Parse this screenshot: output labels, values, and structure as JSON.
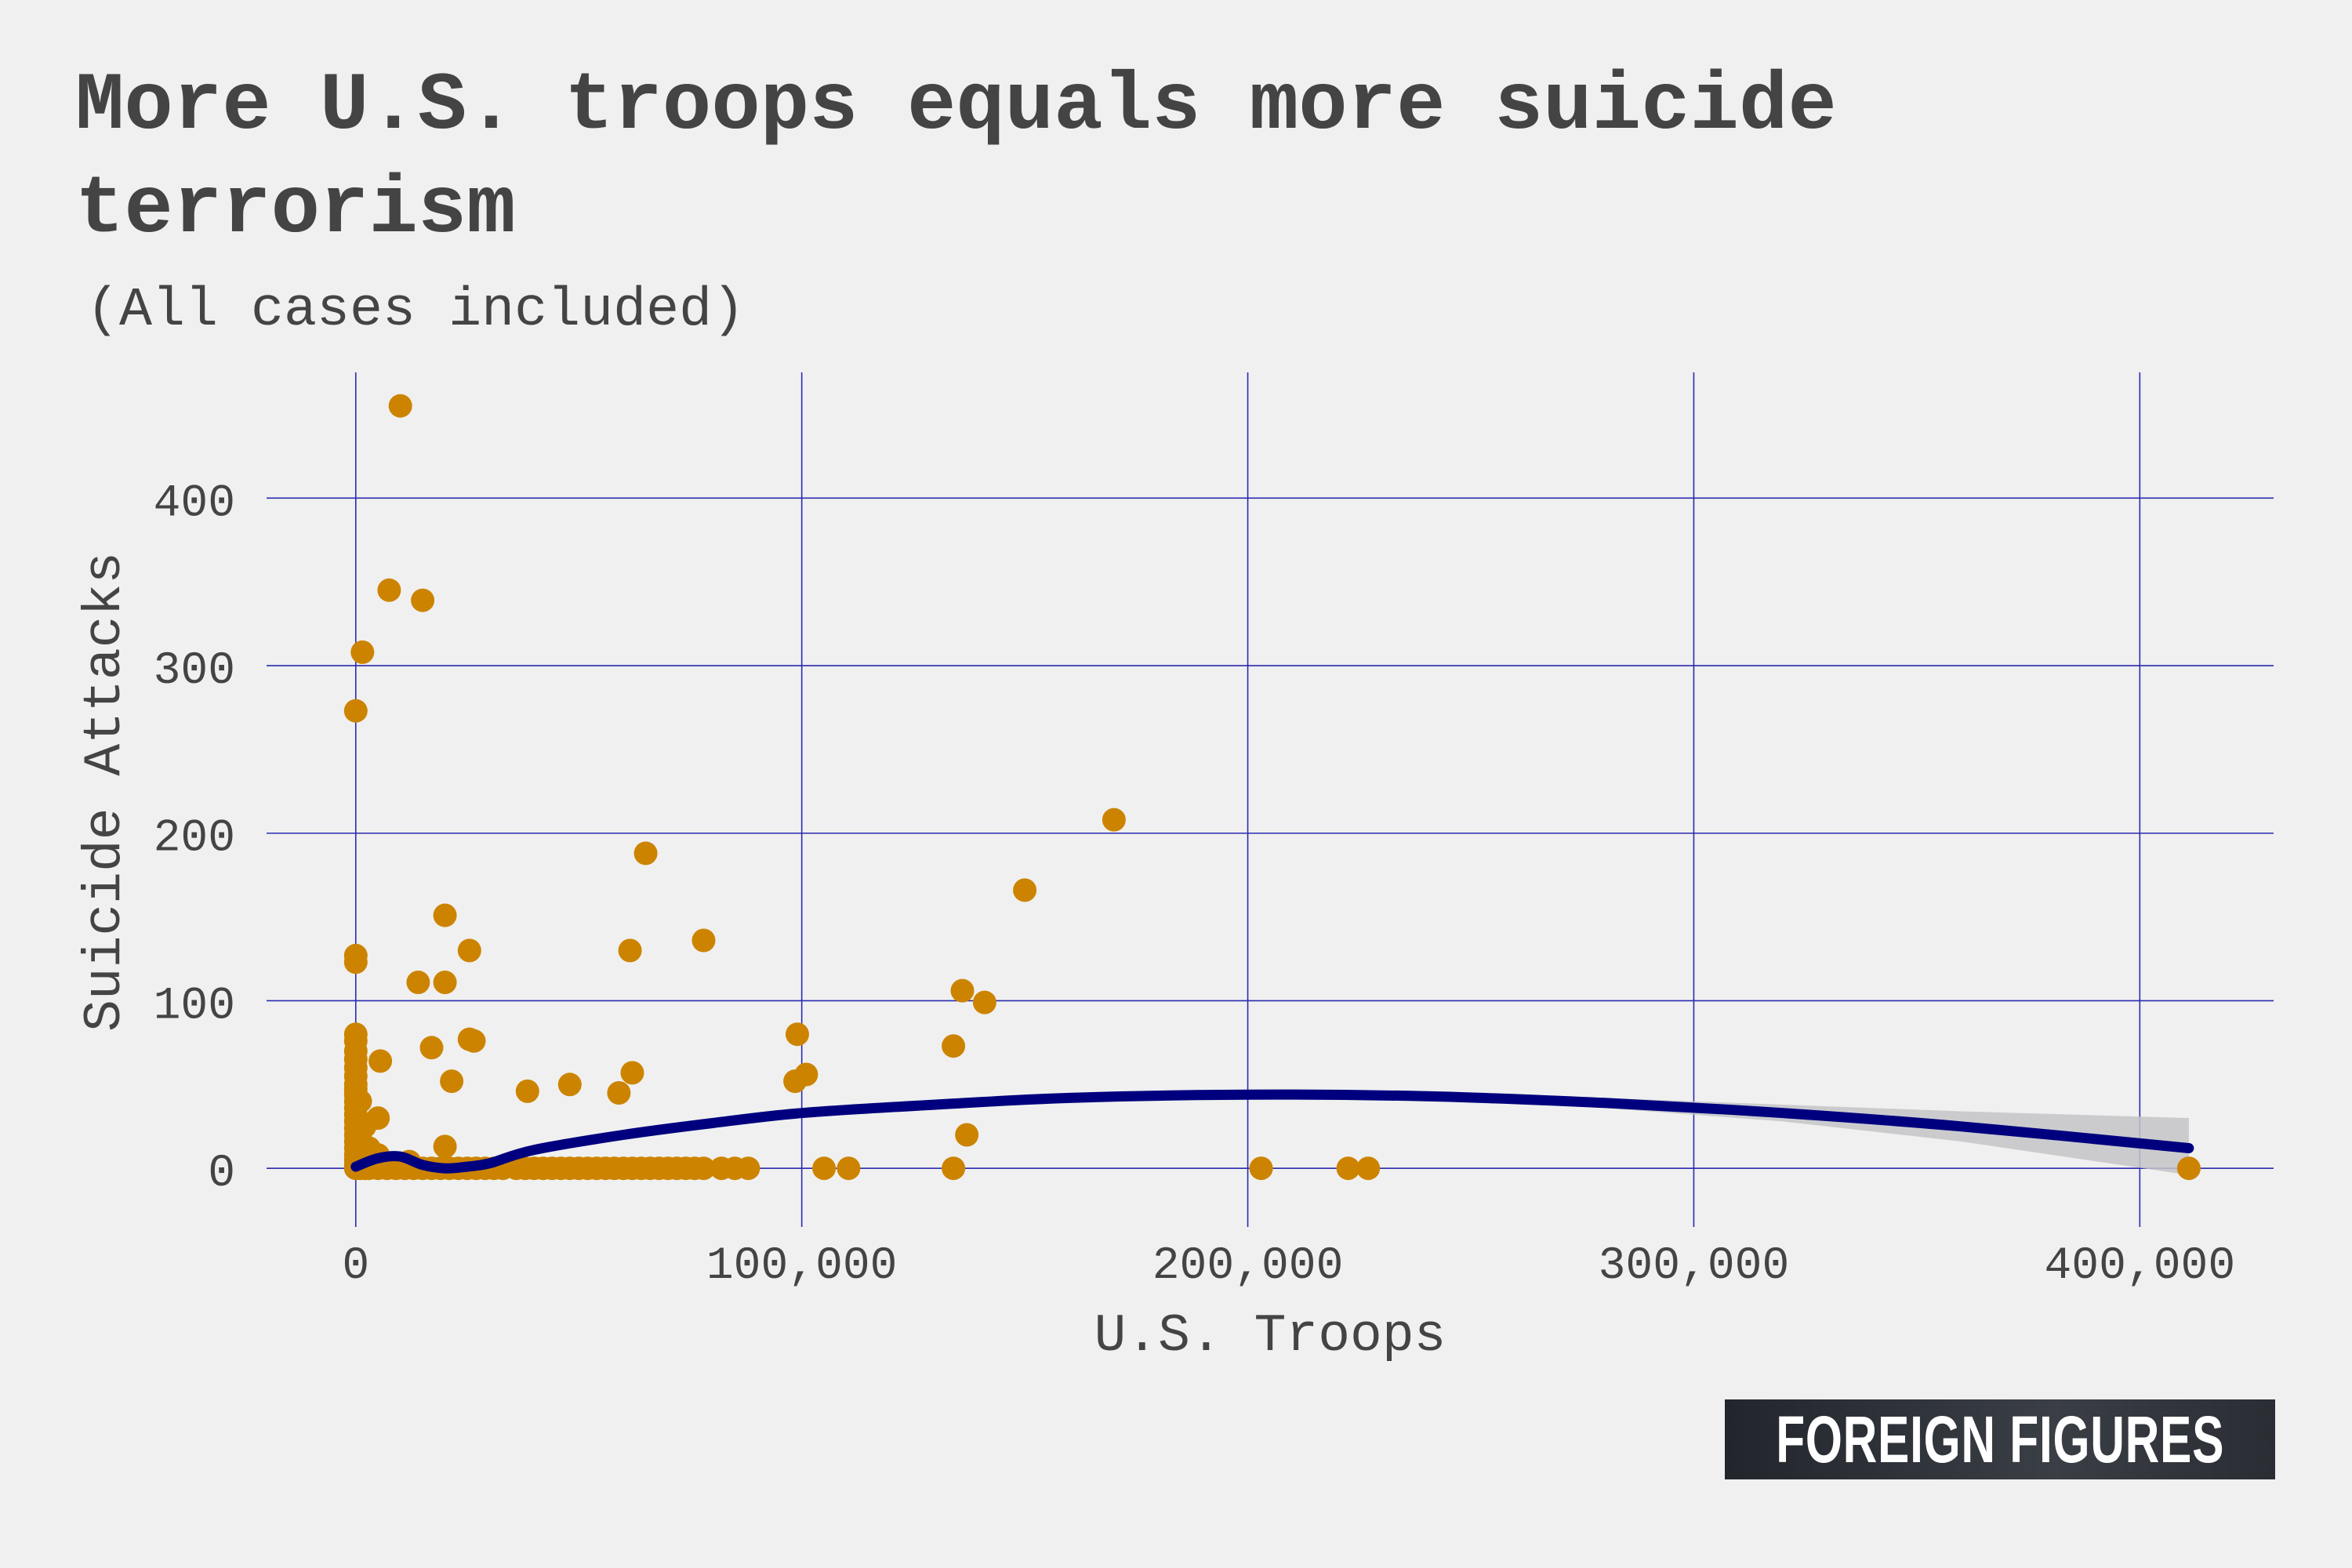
{
  "chart_data": {
    "type": "scatter",
    "title": "More U.S. troops equals more suicide terrorism",
    "subtitle": "(All cases included)",
    "xlabel": "U.S. Troops",
    "ylabel": "Suicide Attacks",
    "xlim": [
      -20000,
      430000
    ],
    "ylim": [
      -35,
      475
    ],
    "x_ticks": [
      0,
      100000,
      200000,
      300000,
      400000
    ],
    "x_tick_labels": [
      "0",
      "100,000",
      "200,000",
      "300,000",
      "400,000"
    ],
    "y_ticks": [
      0,
      100,
      200,
      300,
      400
    ],
    "y_tick_labels": [
      "0",
      "100",
      "200",
      "300",
      "400"
    ],
    "grid": true,
    "colors": {
      "points": "#cc8400",
      "fit_line": "#00007f",
      "band": "#c4c4c8",
      "grid": "#2a2ab0",
      "background": "#f0f0f0",
      "text": "#444444"
    },
    "series": [
      {
        "x": [
          10000,
          7500,
          15000,
          1500,
          0,
          170000,
          65000,
          150000,
          20000,
          78000,
          0,
          0,
          61500,
          25500,
          20000,
          14000,
          136000,
          141000,
          99000,
          0,
          0,
          17000,
          25500,
          26500,
          134000,
          5500,
          101000,
          62000,
          98500,
          21500,
          48000,
          38500,
          59000,
          5000,
          137000,
          0,
          0,
          0,
          0,
          0,
          0,
          0,
          0,
          0,
          0,
          0,
          0,
          0,
          0,
          0,
          0,
          0,
          0,
          1000,
          2000,
          3000,
          1000,
          2000,
          5000,
          12000,
          20000,
          0,
          1000,
          2000,
          3000,
          5000,
          7000,
          9000,
          11000,
          13000,
          15000,
          17000,
          19000,
          21000,
          23000,
          25000,
          27000,
          29000,
          31000,
          33000,
          36000,
          38000,
          40000,
          42000,
          44000,
          46000,
          48000,
          50000,
          52000,
          54000,
          56000,
          58000,
          60000,
          62000,
          64000,
          66000,
          68000,
          70000,
          72000,
          74000,
          76000,
          78000,
          82000,
          85000,
          88000,
          105000,
          110500,
          134000,
          203000,
          222500,
          227000,
          411000
        ],
        "y": [
          455,
          345,
          339,
          308,
          273,
          208,
          188,
          166,
          151,
          136,
          127,
          123,
          130,
          130,
          111,
          111,
          106,
          99,
          80,
          80,
          76,
          72,
          77,
          76,
          73,
          64,
          56,
          57,
          52,
          52,
          50,
          46,
          45,
          30,
          20,
          70,
          65,
          60,
          55,
          50,
          47,
          44,
          40,
          36,
          32,
          28,
          24,
          20,
          16,
          12,
          8,
          5,
          2,
          18,
          25,
          12,
          40,
          8,
          8,
          4,
          13,
          0,
          0,
          0,
          0,
          0,
          0,
          0,
          0,
          0,
          0,
          0,
          0,
          0,
          0,
          0,
          0,
          0,
          0,
          0,
          0,
          0,
          0,
          0,
          0,
          0,
          0,
          0,
          0,
          0,
          0,
          0,
          0,
          0,
          0,
          0,
          0,
          0,
          0,
          0,
          0,
          0,
          0,
          0,
          0,
          0,
          0,
          0,
          0,
          0,
          0,
          0
        ]
      }
    ],
    "fit": {
      "x": [
        0,
        5000,
        10000,
        15000,
        20000,
        25000,
        30000,
        40000,
        60000,
        80000,
        100000,
        130000,
        160000,
        200000,
        240000,
        280000,
        320000,
        360000,
        411000
      ],
      "y": [
        1,
        6,
        7,
        2,
        0,
        1,
        3,
        11,
        20,
        27,
        33,
        38,
        42,
        44,
        43,
        39,
        33,
        25,
        12
      ],
      "ci_low": [
        -2,
        3,
        4,
        0,
        -2,
        -1,
        1,
        9,
        18,
        25,
        31,
        37,
        41,
        43,
        41,
        36,
        28,
        16,
        -4
      ],
      "ci_high": [
        4,
        9,
        10,
        5,
        3,
        3,
        5,
        13,
        22,
        29,
        35,
        39,
        43,
        45,
        45,
        42,
        38,
        34,
        30
      ]
    }
  },
  "brand": {
    "label": "FOREIGN FIGURES"
  }
}
